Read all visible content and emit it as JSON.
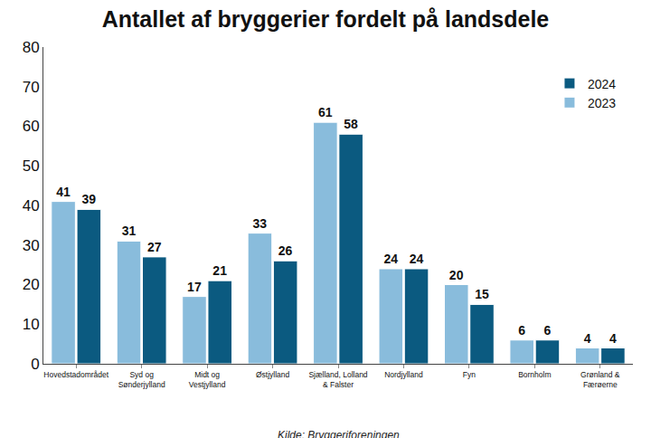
{
  "chart_data": {
    "type": "bar",
    "title": "Antallet af bryggerier fordelt på landsdele",
    "source": "Kilde: Bryggeriforeningen",
    "categories": [
      "Hovedstadområdet",
      "Syd og\nSønderjylland",
      "Midt og\nVestjylland",
      "Østjylland",
      "Sjælland, Lolland\n& Falster",
      "Nordjylland",
      "Fyn",
      "Bornholm",
      "Grønland &\nFærøerne"
    ],
    "series": [
      {
        "name": "2023",
        "color": "#89bcdc",
        "values": [
          41,
          31,
          17,
          33,
          61,
          24,
          20,
          6,
          4
        ]
      },
      {
        "name": "2024",
        "color": "#0b5a80",
        "values": [
          39,
          27,
          21,
          26,
          58,
          24,
          15,
          6,
          4
        ]
      }
    ],
    "ylim": [
      0,
      80
    ],
    "yticks": [
      0,
      10,
      20,
      30,
      40,
      50,
      60,
      70,
      80
    ],
    "grid": false,
    "legend": "top right",
    "data_labels": true
  }
}
